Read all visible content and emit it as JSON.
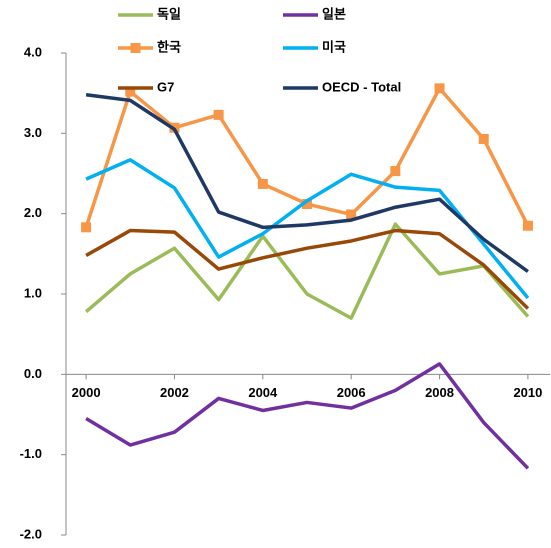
{
  "chart_data": {
    "type": "line",
    "x": [
      2000,
      2001,
      2002,
      2003,
      2004,
      2005,
      2006,
      2007,
      2008,
      2009,
      2010
    ],
    "xlim": [
      1999.5,
      2010.5
    ],
    "xticks": [
      2000,
      2002,
      2004,
      2006,
      2008,
      2010
    ],
    "ylim": [
      -2,
      4
    ],
    "yticks": [
      {
        "value": -2,
        "label": "-2.0"
      },
      {
        "value": -1,
        "label": "-1.0"
      },
      {
        "value": 0,
        "label": "0.0"
      },
      {
        "value": 1,
        "label": "1.0"
      },
      {
        "value": 2,
        "label": "2.0"
      },
      {
        "value": 3,
        "label": "3.0"
      },
      {
        "value": 4,
        "label": "4.0"
      }
    ],
    "legend": "top",
    "series": [
      {
        "name": "독일",
        "color": "#9bbb59",
        "values": [
          0.78,
          1.25,
          1.57,
          0.93,
          1.72,
          1.0,
          0.7,
          1.87,
          1.25,
          1.35,
          0.72
        ]
      },
      {
        "name": "일본",
        "color": "#7030a0",
        "values": [
          -0.55,
          -0.88,
          -0.72,
          -0.3,
          -0.45,
          -0.35,
          -0.42,
          -0.2,
          0.13,
          -0.6,
          -1.17
        ]
      },
      {
        "name": "한국",
        "color": "#f79646",
        "marker": "square",
        "values": [
          1.83,
          3.52,
          3.07,
          3.23,
          2.37,
          2.12,
          1.99,
          2.53,
          3.56,
          2.93,
          1.85
        ]
      },
      {
        "name": "미국",
        "color": "#00b0f0",
        "values": [
          2.43,
          2.67,
          2.32,
          1.46,
          1.75,
          2.16,
          2.49,
          2.33,
          2.29,
          1.62,
          0.95
        ]
      },
      {
        "name": "G7",
        "color": "#984807",
        "values": [
          1.48,
          1.79,
          1.77,
          1.31,
          1.45,
          1.57,
          1.66,
          1.79,
          1.75,
          1.36,
          0.82
        ]
      },
      {
        "name": "OECD - Total",
        "color": "#1f3864",
        "values": [
          3.48,
          3.41,
          3.05,
          2.02,
          1.83,
          1.86,
          1.92,
          2.08,
          2.18,
          1.68,
          1.28
        ]
      }
    ]
  }
}
